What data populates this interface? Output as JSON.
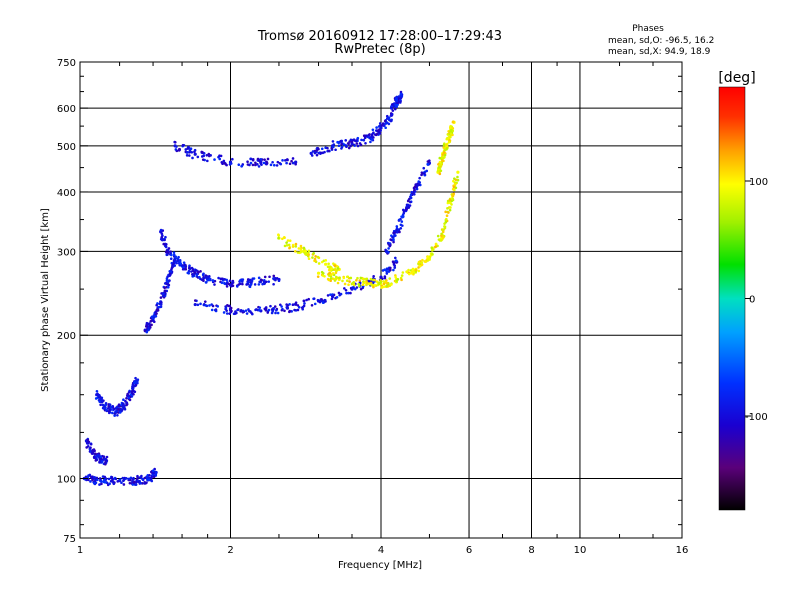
{
  "chart_data": {
    "type": "scatter",
    "title": "Tromsø 20160912 17:28:00–17:29:43",
    "subtitle": "RwPretec (8p)",
    "xlabel": "Frequency [MHz]",
    "ylabel": "Stationary phase Virtual Height [km]",
    "x_scale": "log",
    "y_scale": "log",
    "xlim": [
      1,
      16
    ],
    "ylim": [
      75,
      750
    ],
    "x_ticks": [
      1,
      2,
      4,
      6,
      8,
      10,
      16
    ],
    "x_gridlines": [
      2,
      4,
      6,
      8,
      10
    ],
    "y_ticks": [
      75,
      100,
      200,
      300,
      400,
      500,
      600,
      750
    ],
    "grid": true,
    "phases": {
      "heading": "Phases",
      "line_o": "mean, sd,O: -96.5, 16.2",
      "line_x": "mean, sd,X:  94.9, 18.9"
    },
    "colorbar": {
      "label": "[deg]",
      "range": [
        -180,
        180
      ],
      "ticks": [
        100,
        0,
        -100
      ],
      "colormap": "rainbow: black-purple-blue-cyan-green-yellow-red"
    },
    "series": [
      {
        "mode": "O",
        "mean_phase": -96.5,
        "traces": [
          {
            "x": [
              1.02,
              1.1,
              1.2,
              1.3,
              1.38,
              1.42
            ],
            "y": [
              100,
              99,
              99,
              99,
              100,
              103
            ]
          },
          {
            "x": [
              1.03,
              1.06,
              1.1,
              1.13
            ],
            "y": [
              120,
              113,
              110,
              109
            ]
          },
          {
            "x": [
              1.08,
              1.12,
              1.18,
              1.22,
              1.27,
              1.3
            ],
            "y": [
              150,
              142,
              138,
              142,
              152,
              160
            ]
          },
          {
            "x": [
              1.35,
              1.4,
              1.45,
              1.5,
              1.55
            ],
            "y": [
              205,
              215,
              235,
              260,
              290
            ]
          },
          {
            "x": [
              1.45,
              1.5,
              1.6,
              1.7,
              1.8,
              2.0,
              2.2,
              2.5
            ],
            "y": [
              330,
              300,
              280,
              270,
              262,
              255,
              258,
              262
            ]
          },
          {
            "x": [
              1.7,
              2.0,
              2.3,
              2.6,
              3.0,
              3.5,
              4.0,
              4.3
            ],
            "y": [
              232,
              226,
              225,
              228,
              236,
              250,
              265,
              285
            ]
          },
          {
            "x": [
              4.1,
              4.3,
              4.5,
              4.7,
              5.0
            ],
            "y": [
              300,
              330,
              370,
              410,
              460
            ]
          },
          {
            "x": [
              1.55,
              1.7,
              2.0,
              2.3,
              2.7
            ],
            "y": [
              500,
              480,
              462,
              462,
              462
            ]
          },
          {
            "x": [
              2.9,
              3.2,
              3.5,
              3.8,
              4.0,
              4.2
            ],
            "y": [
              482,
              500,
              505,
              520,
              545,
              580
            ]
          },
          {
            "x": [
              4.2,
              4.3,
              4.4
            ],
            "y": [
              600,
              620,
              640
            ]
          }
        ]
      },
      {
        "mode": "X",
        "mean_phase": 94.9,
        "traces": [
          {
            "x": [
              3.0,
              3.3,
              3.7,
              4.0,
              4.3,
              4.7,
              5.0,
              5.3,
              5.5,
              5.7
            ],
            "y": [
              270,
              262,
              258,
              256,
              262,
              275,
              292,
              325,
              380,
              440
            ]
          },
          {
            "x": [
              5.2,
              5.3,
              5.4,
              5.5,
              5.6
            ],
            "y": [
              440,
              470,
              500,
              530,
              560
            ]
          },
          {
            "x": [
              2.5,
              2.8,
              3.1,
              3.3
            ],
            "y": [
              320,
              300,
              282,
              275
            ]
          }
        ]
      }
    ]
  }
}
